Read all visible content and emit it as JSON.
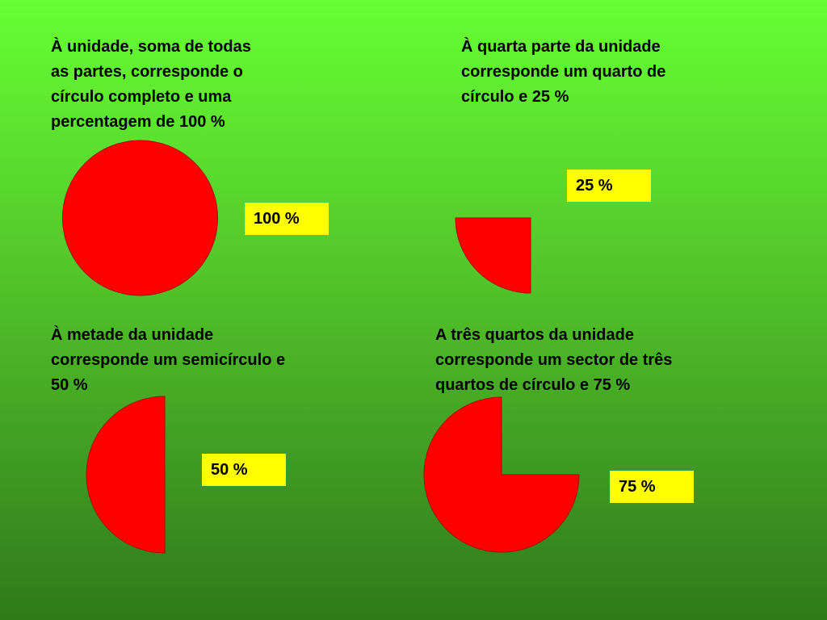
{
  "colors": {
    "shape_fill": "#ff0000",
    "shape_stroke": "#b30000",
    "label_background": "#ffff00",
    "background_top": "#66ff33",
    "background_bottom": "#2f7a1a"
  },
  "panels": [
    {
      "id": "full",
      "caption_lines": [
        "À unidade, soma de todas",
        "as partes, corresponde o",
        "círculo completo e uma",
        "percentagem de 100 %"
      ],
      "label": "100 %",
      "fraction": 1.0
    },
    {
      "id": "quarter",
      "caption_lines": [
        "À quarta parte da unidade",
        "corresponde um quarto de",
        "círculo e 25 %"
      ],
      "label": "25 %",
      "fraction": 0.25
    },
    {
      "id": "half",
      "caption_lines": [
        "À metade da unidade",
        "corresponde um semicírculo e",
        "50 %"
      ],
      "label": "50 %",
      "fraction": 0.5
    },
    {
      "id": "three-quarters",
      "caption_lines": [
        "A três quartos da unidade",
        "corresponde um sector de três",
        "quartos de círculo e 75 %"
      ],
      "label": "75 %",
      "fraction": 0.75
    }
  ]
}
